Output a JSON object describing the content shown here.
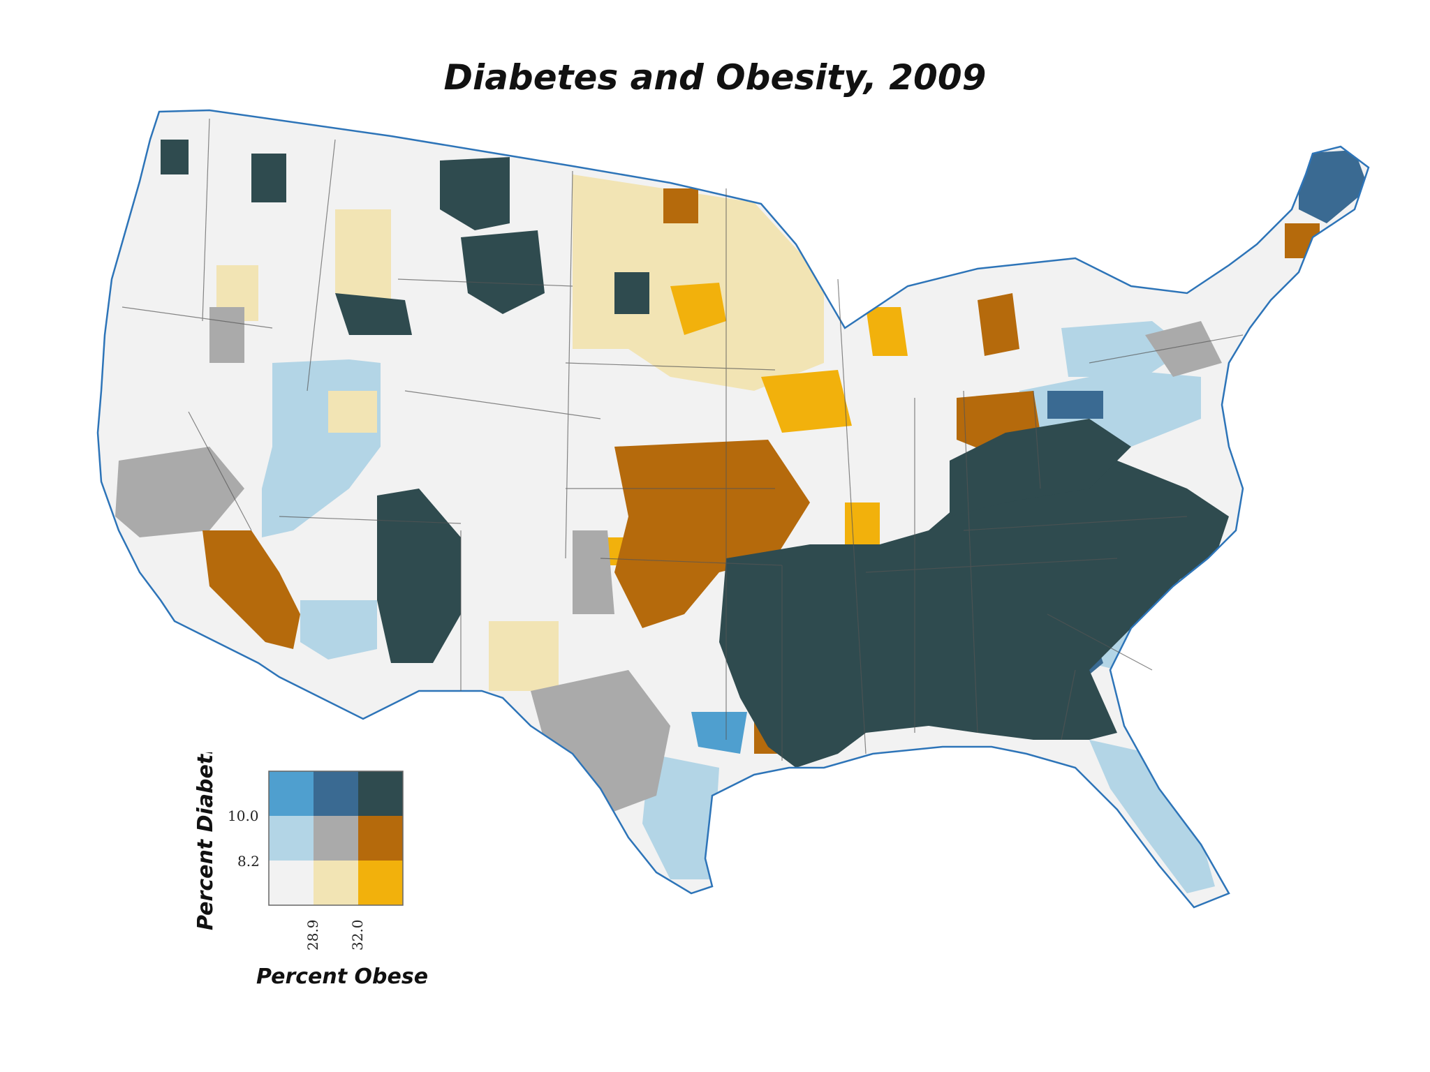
{
  "title": "Diabetes and Obesity, 2009",
  "legend": {
    "y_label": "Percent Diabetic",
    "x_label": "Percent Obese",
    "y_ticks": [
      "10.0",
      "8.2"
    ],
    "x_ticks": [
      "28.9",
      "32.0"
    ],
    "grid_colors": [
      [
        "#4f9fcf",
        "#3a6a92",
        "#2f4b4f"
      ],
      [
        "#b3d5e6",
        "#aaaaaa",
        "#b56a0c"
      ],
      [
        "#f2f2f2",
        "#f2e4b4",
        "#f2b10c"
      ]
    ]
  },
  "colors": {
    "land_base": "#f2f2f2",
    "coast": "#2d74b8",
    "borders": "#555555",
    "low_low": "#f2f2f2",
    "low_mid": "#f2e4b4",
    "low_high": "#f2b10c",
    "mid_low": "#b3d5e6",
    "mid_mid": "#aaaaaa",
    "mid_high": "#b56a0c",
    "high_low": "#4f9fcf",
    "high_mid": "#3a6a92",
    "high_high": "#2f4b4f"
  }
}
